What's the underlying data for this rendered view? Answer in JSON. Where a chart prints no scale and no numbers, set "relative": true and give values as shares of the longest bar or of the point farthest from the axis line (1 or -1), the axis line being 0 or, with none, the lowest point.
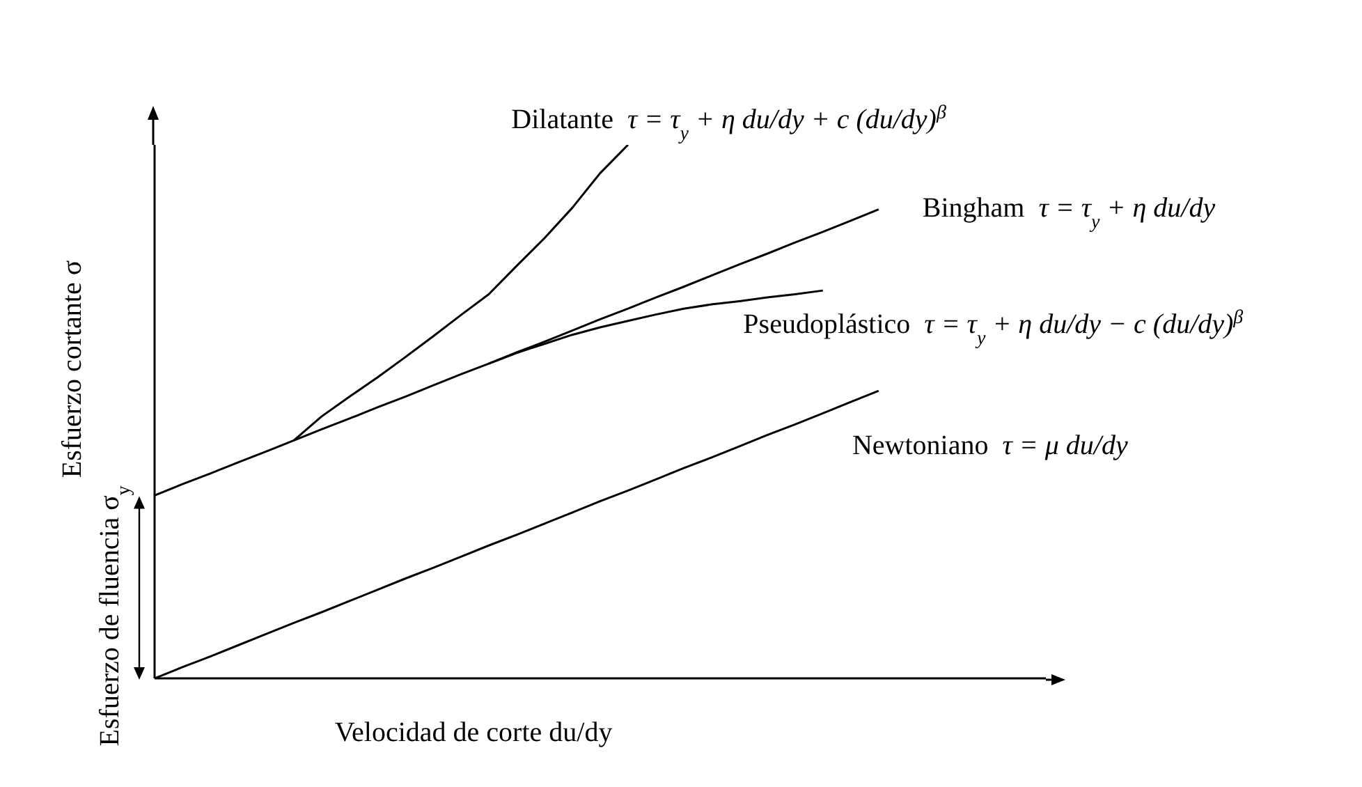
{
  "chart_data": {
    "type": "line",
    "relative": true,
    "xlabel": "Velocidad de corte du/dy",
    "ylabel": "Esfuerzo cortante σ",
    "marker": "none",
    "line_style": "solid",
    "categories": [
      null,
      null,
      null,
      null,
      null,
      null,
      null,
      null,
      null,
      null,
      null,
      null,
      null,
      null,
      null,
      null,
      null,
      null,
      null,
      null,
      null,
      null,
      null,
      null,
      null,
      null,
      null
    ],
    "series": [
      {
        "name": "Dilatante",
        "color": "#000000",
        "values": [
          null,
          null,
          null,
          null,
          null,
          0.446,
          0.491,
          0.528,
          0.564,
          0.602,
          0.641,
          0.681,
          0.72,
          0.773,
          0.825,
          0.882,
          0.947,
          1,
          null,
          null,
          null,
          null,
          null,
          null,
          null,
          null,
          null
        ]
      },
      {
        "name": "Bingham",
        "color": "#000000",
        "values": [
          0.343,
          0.364,
          0.384,
          0.405,
          0.425,
          0.446,
          0.467,
          0.487,
          0.508,
          0.528,
          0.549,
          0.57,
          0.59,
          0.611,
          0.631,
          0.652,
          0.673,
          0.693,
          0.714,
          0.734,
          0.755,
          0.776,
          0.796,
          0.817,
          0.837,
          0.858,
          0.879
        ]
      },
      {
        "name": "Pseudoplástico",
        "color": "#000000",
        "values": [
          null,
          null,
          null,
          null,
          null,
          null,
          null,
          null,
          null,
          null,
          null,
          null,
          0.59,
          0.61,
          0.627,
          0.644,
          0.658,
          0.67,
          0.682,
          0.693,
          0.701,
          0.707,
          0.714,
          0.72,
          0.727,
          null,
          null
        ]
      },
      {
        "name": "Newtoniano",
        "color": "#000000",
        "values": [
          0,
          0.021,
          0.041,
          0.062,
          0.083,
          0.104,
          0.124,
          0.145,
          0.166,
          0.187,
          0.207,
          0.228,
          0.249,
          0.269,
          0.29,
          0.311,
          0.332,
          0.352,
          0.373,
          0.394,
          0.414,
          0.435,
          0.456,
          0.476,
          0.497,
          0.518,
          0.539
        ]
      }
    ],
    "annotations": [
      "τ = τ$_{y}$ + η du/dy + c (du/dy)$^{β}$",
      "τ = τ$_{y}$ + η du/dy",
      "τ = τ$_{y}$ + η du/dy − c (du/dy)$^{β}$",
      "τ = μ du/dy",
      "Esfuerzo de fluencia σ$_{y}$"
    ]
  }
}
